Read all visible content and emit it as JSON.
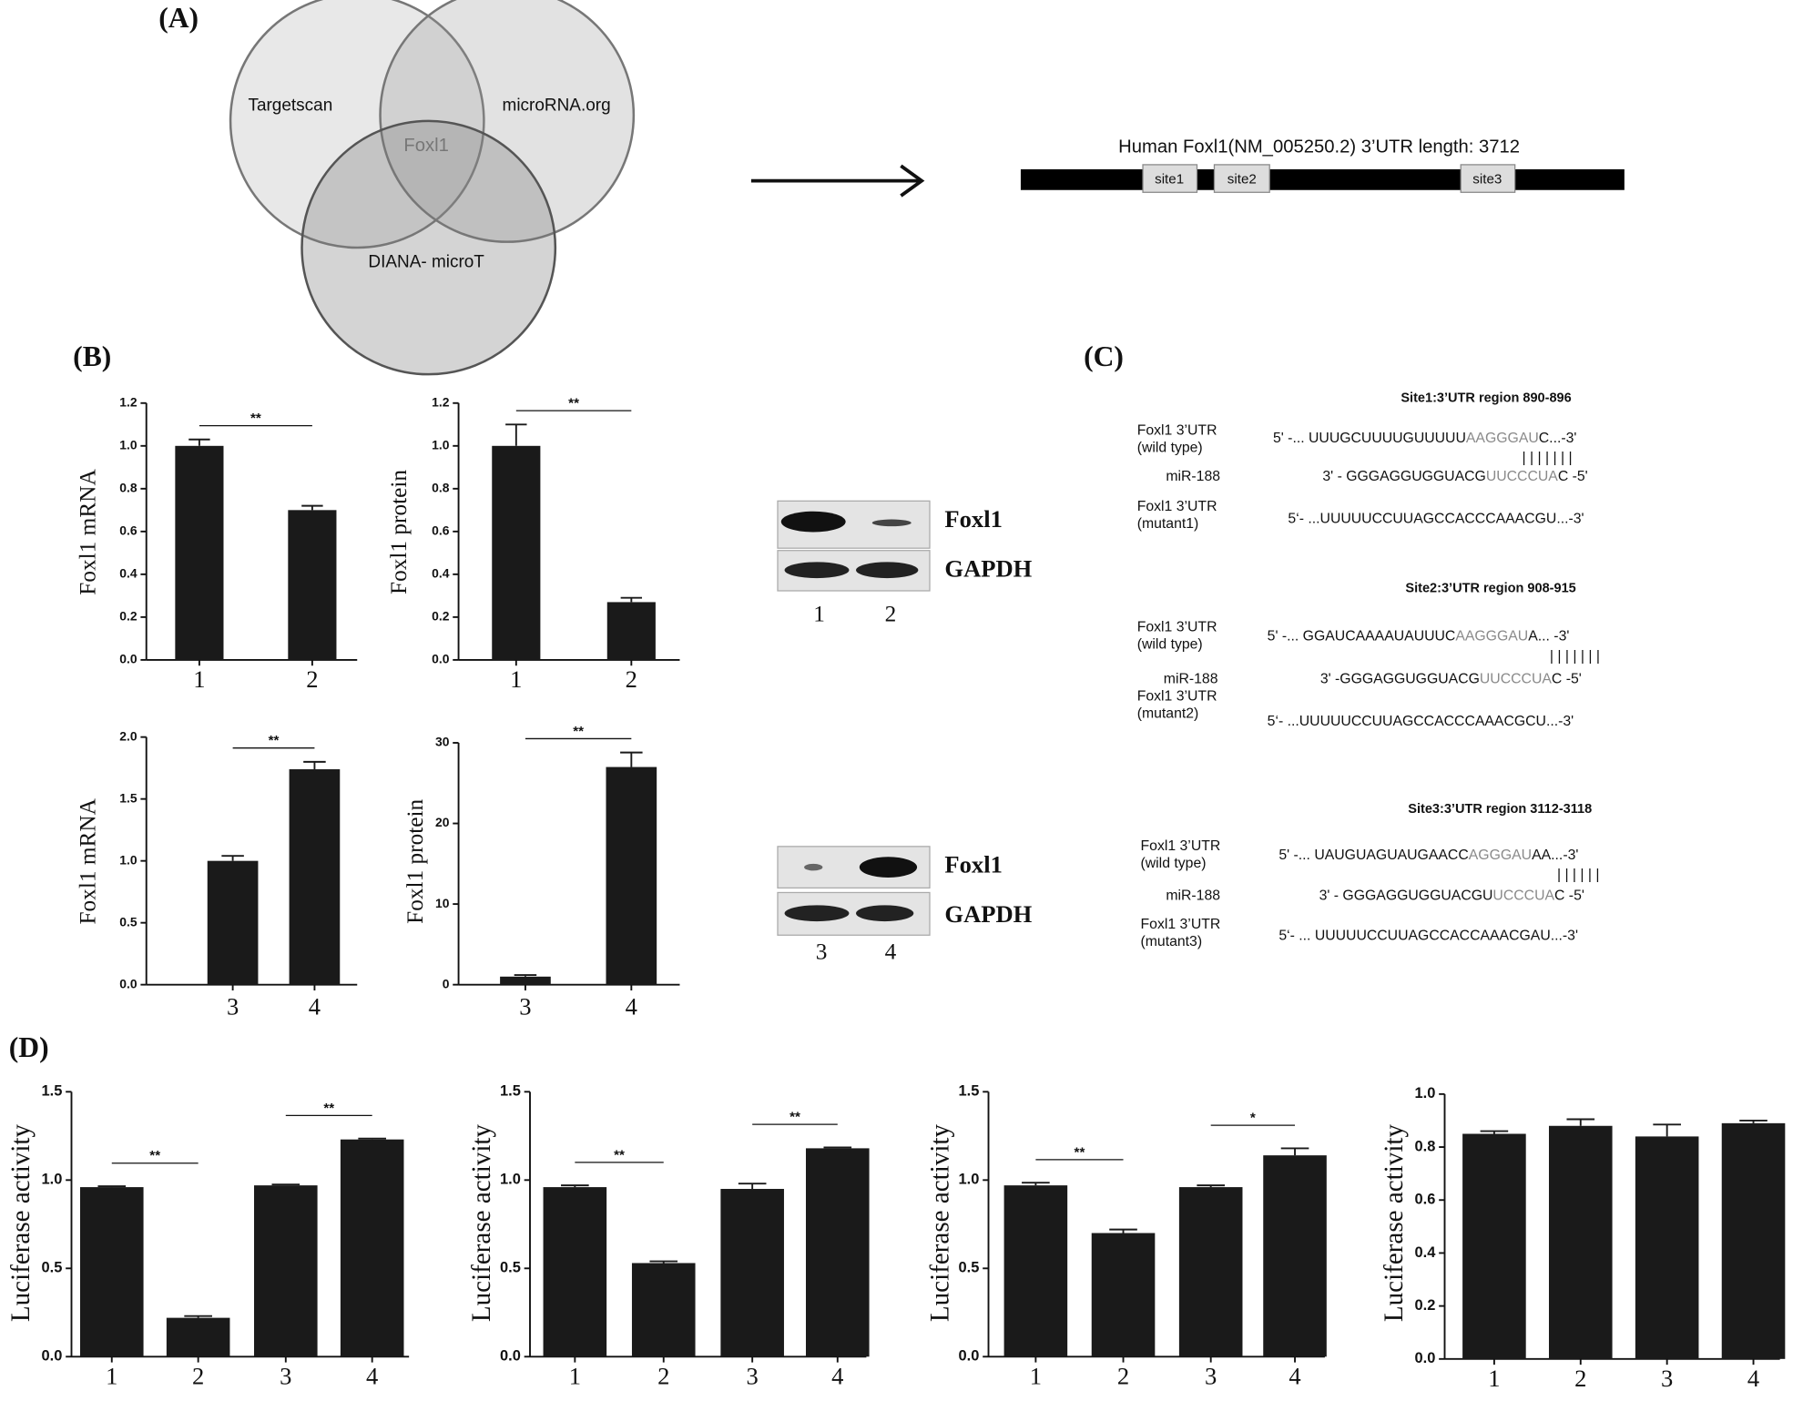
{
  "panel_labels": [
    "(A)",
    "(B)",
    "(C)",
    "(D)"
  ],
  "venn": {
    "sets": [
      "Targetscan",
      "microRNA.org",
      "DIANA- microT"
    ],
    "intersection": "Foxl1"
  },
  "utr": {
    "title": "Human Foxl1(NM_005250.2) 3’UTR length: 3712",
    "sites": [
      "site1",
      "site2",
      "site3"
    ]
  },
  "blots": [
    {
      "rows": [
        "Foxl1",
        "GAPDH"
      ],
      "lanes": [
        "1",
        "2"
      ]
    },
    {
      "rows": [
        "Foxl1",
        "GAPDH"
      ],
      "lanes": [
        "3",
        "4"
      ]
    }
  ],
  "sequences": [
    {
      "title": "Site1:3’UTR region 890-896",
      "wild_label": [
        "Foxl1 3’UTR",
        "(wild type)"
      ],
      "wild": [
        {
          "text": "5' -... UUUGCUUUUGUUUUU"
        },
        {
          "text": "AAGGGAU",
          "highlight": true
        },
        {
          "text": "C...-3'"
        }
      ],
      "pairing": "| | | | | | |",
      "mirna_label": "miR-188",
      "mirna": [
        {
          "text": "3' - GGGAGGUGGUACG"
        },
        {
          "text": "UUCCCUA",
          "highlight": true
        },
        {
          "text": "C -5'"
        }
      ],
      "mutant_label": [
        "Foxl1 3’UTR",
        "(mutant1)"
      ],
      "mutant": [
        {
          "text": "5‘- ...UUUUUCCUUAGCCACCCAAACGU...-3'"
        }
      ]
    },
    {
      "title": "Site2:3’UTR region 908-915",
      "wild_label": [
        "Foxl1 3’UTR",
        "(wild type)"
      ],
      "wild": [
        {
          "text": "5' -...  GGAUCAAAAUAUUUC"
        },
        {
          "text": "AAGGGAU",
          "highlight": true
        },
        {
          "text": "A...  -3'"
        }
      ],
      "pairing": "| | | | | | |",
      "mirna_label": "miR-188",
      "mirna": [
        {
          "text": "3' -GGGAGGUGGUACG"
        },
        {
          "text": "UUCCCUA",
          "highlight": true
        },
        {
          "text": "C -5'"
        }
      ],
      "mutant_label": [
        "Foxl1 3’UTR",
        "(mutant2)"
      ],
      "mutant": [
        {
          "text": "5‘- ...UUUUUCCUUAGCCACCCAAACGCU...-3'"
        }
      ]
    },
    {
      "title": "Site3:3’UTR region 3112-3118",
      "wild_label": [
        "Foxl1 3’UTR",
        "(wild type)"
      ],
      "wild": [
        {
          "text": "5' -... UAUGUAGUAUGAACC"
        },
        {
          "text": "AGGGAU",
          "highlight": true
        },
        {
          "text": "AA...-3'"
        }
      ],
      "pairing": "| | | | | |",
      "mirna_label": "miR-188",
      "mirna": [
        {
          "text": "3' - GGGAGGUGGUACGU"
        },
        {
          "text": "UCCCUA",
          "highlight": true
        },
        {
          "text": "C -5'"
        }
      ],
      "mutant_label": [
        "Foxl1 3’UTR",
        "(mutant3)"
      ],
      "mutant": [
        {
          "text": "5‘- ... UUUUUCCUUAGCCACCAAACGAU...-3'"
        }
      ]
    }
  ],
  "chart_data": [
    {
      "type": "bar",
      "y_label": "Foxl1 mRNA",
      "categories": [
        "1",
        "2"
      ],
      "values": [
        1.0,
        0.7
      ],
      "errors": [
        0.03,
        0.02
      ],
      "color": "#1a1a1a",
      "ylim": [
        0,
        1.2
      ],
      "yticks": [
        {
          "value": 0,
          "label": "0.0"
        },
        {
          "value": 0.2,
          "label": "0.2"
        },
        {
          "value": 0.4,
          "label": "0.4"
        },
        {
          "value": 0.6,
          "label": "0.6"
        },
        {
          "value": 0.8,
          "label": "0.8"
        },
        {
          "value": 1.0,
          "label": "1.0"
        },
        {
          "value": 1.2,
          "label": "1.2"
        }
      ],
      "significance": [
        {
          "label": "**",
          "categories": [
            "1",
            "2"
          ]
        }
      ]
    },
    {
      "type": "bar",
      "y_label": "Foxl1 protein",
      "categories": [
        "1",
        "2"
      ],
      "values": [
        1.0,
        0.27
      ],
      "errors": [
        0.1,
        0.02
      ],
      "color": "#1a1a1a",
      "ylim": [
        0,
        1.2
      ],
      "yticks": [
        {
          "value": 0,
          "label": "0.0"
        },
        {
          "value": 0.2,
          "label": "0.2"
        },
        {
          "value": 0.4,
          "label": "0.4"
        },
        {
          "value": 0.6,
          "label": "0.6"
        },
        {
          "value": 0.8,
          "label": "0.8"
        },
        {
          "value": 1.0,
          "label": "1.0"
        },
        {
          "value": 1.2,
          "label": "1.2"
        }
      ],
      "significance": [
        {
          "label": "**",
          "categories": [
            "1",
            "2"
          ]
        }
      ]
    },
    {
      "type": "bar",
      "y_label": "Foxl1 mRNA",
      "categories": [
        "3",
        "4"
      ],
      "values": [
        1.0,
        1.74
      ],
      "errors": [
        0.04,
        0.06
      ],
      "color": "#1a1a1a",
      "ylim": [
        0,
        2.0
      ],
      "yticks": [
        {
          "value": 0,
          "label": "0.0"
        },
        {
          "value": 0.5,
          "label": "0.5"
        },
        {
          "value": 1.0,
          "label": "1.0"
        },
        {
          "value": 1.5,
          "label": "1.5"
        },
        {
          "value": 2.0,
          "label": "2.0"
        }
      ],
      "significance": [
        {
          "label": "**",
          "categories": [
            "3",
            "4"
          ]
        }
      ]
    },
    {
      "type": "bar",
      "y_label": "Foxl1 protein",
      "categories": [
        "3",
        "4"
      ],
      "values": [
        1.0,
        27
      ],
      "errors": [
        0.2,
        1.8
      ],
      "color": "#1a1a1a",
      "ylim": [
        0,
        30
      ],
      "yticks": [
        0,
        10,
        20,
        30
      ],
      "significance": [
        {
          "label": "**",
          "categories": [
            "3",
            "4"
          ]
        }
      ]
    },
    {
      "type": "bar",
      "y_label": "Luciferase activity",
      "categories": [
        "1",
        "2",
        "3",
        "4"
      ],
      "values": [
        0.96,
        0.22,
        0.97,
        1.23
      ],
      "errors": [
        0.005,
        0.01,
        0.005,
        0.005
      ],
      "color": "#1a1a1a",
      "ylim": [
        0,
        1.5
      ],
      "yticks": [
        {
          "value": 0,
          "label": "0.0"
        },
        {
          "value": 0.5,
          "label": "0.5"
        },
        {
          "value": 1.0,
          "label": "1.0"
        },
        {
          "value": 1.5,
          "label": "1.5"
        }
      ],
      "significance": [
        {
          "label": "**",
          "categories": [
            "1",
            "2"
          ]
        },
        {
          "label": "**",
          "categories": [
            "3",
            "4"
          ]
        }
      ]
    },
    {
      "type": "bar",
      "y_label": "Luciferase activity",
      "categories": [
        "1",
        "2",
        "3",
        "4"
      ],
      "values": [
        0.96,
        0.53,
        0.95,
        1.18
      ],
      "errors": [
        0.01,
        0.01,
        0.03,
        0.005
      ],
      "color": "#1a1a1a",
      "ylim": [
        0,
        1.5
      ],
      "yticks": [
        {
          "value": 0,
          "label": "0.0"
        },
        {
          "value": 0.5,
          "label": "0.5"
        },
        {
          "value": 1.0,
          "label": "1.0"
        },
        {
          "value": 1.5,
          "label": "1.5"
        }
      ],
      "significance": [
        {
          "label": "**",
          "categories": [
            "1",
            "2"
          ]
        },
        {
          "label": "**",
          "categories": [
            "3",
            "4"
          ]
        }
      ]
    },
    {
      "type": "bar",
      "y_label": "Luciferase activity",
      "categories": [
        "1",
        "2",
        "3",
        "4"
      ],
      "values": [
        0.97,
        0.7,
        0.96,
        1.14
      ],
      "errors": [
        0.015,
        0.02,
        0.01,
        0.04
      ],
      "color": "#1a1a1a",
      "ylim": [
        0,
        1.5
      ],
      "yticks": [
        {
          "value": 0,
          "label": "0.0"
        },
        {
          "value": 0.5,
          "label": "0.5"
        },
        {
          "value": 1.0,
          "label": "1.0"
        },
        {
          "value": 1.5,
          "label": "1.5"
        }
      ],
      "significance": [
        {
          "label": "**",
          "categories": [
            "1",
            "2"
          ]
        },
        {
          "label": "*",
          "categories": [
            "3",
            "4"
          ]
        }
      ]
    },
    {
      "type": "bar",
      "y_label": "Luciferase activity",
      "categories": [
        "1",
        "2",
        "3",
        "4"
      ],
      "values": [
        0.85,
        0.88,
        0.84,
        0.89
      ],
      "errors": [
        0.01,
        0.025,
        0.045,
        0.01
      ],
      "color": "#1a1a1a",
      "ylim": [
        0,
        1.0
      ],
      "yticks": [
        {
          "value": 0,
          "label": "0.0"
        },
        {
          "value": 0.2,
          "label": "0.2"
        },
        {
          "value": 0.4,
          "label": "0.4"
        },
        {
          "value": 0.6,
          "label": "0.6"
        },
        {
          "value": 0.8,
          "label": "0.8"
        },
        {
          "value": 1.0,
          "label": "1.0"
        }
      ],
      "significance": []
    }
  ]
}
